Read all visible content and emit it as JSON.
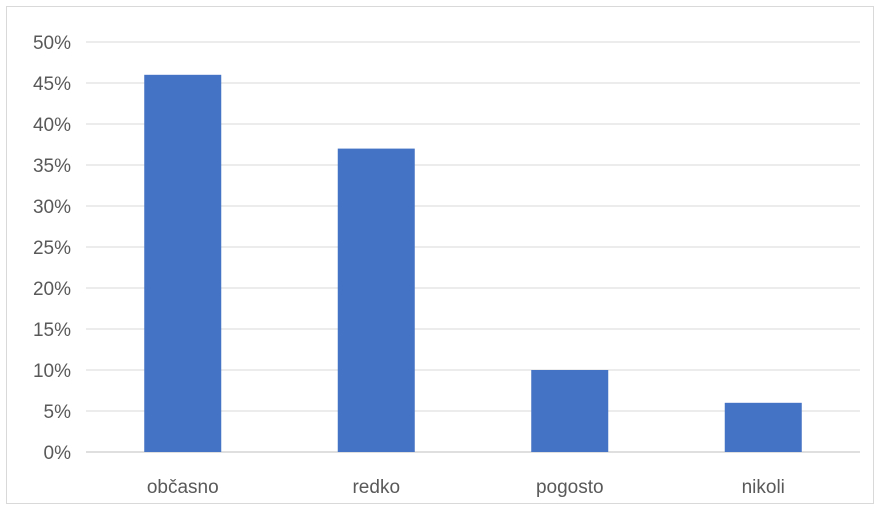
{
  "chart_data": {
    "type": "bar",
    "title": "",
    "xlabel": "",
    "ylabel": "",
    "categories": [
      "občasno",
      "redko",
      "pogosto",
      "nikoli"
    ],
    "values": [
      0.46,
      0.37,
      0.1,
      0.06
    ],
    "ylim": [
      0,
      0.5
    ],
    "ytick_values": [
      0,
      0.05,
      0.1,
      0.15,
      0.2,
      0.25,
      0.3,
      0.35,
      0.4,
      0.45,
      0.5
    ],
    "ytick_labels": [
      "0%",
      "5%",
      "10%",
      "15%",
      "20%",
      "25%",
      "30%",
      "35%",
      "40%",
      "45%",
      "50%"
    ],
    "grid": true,
    "legend": "none",
    "colors": {
      "bar": "#4472C4",
      "grid": "#d9d9d9",
      "axis": "#bfbfbf",
      "text": "#595959"
    }
  }
}
